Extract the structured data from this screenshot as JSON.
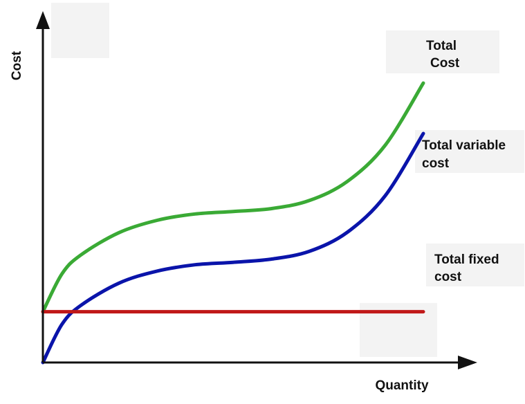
{
  "chart_data": {
    "type": "line",
    "title": "",
    "xlabel": "Quantity",
    "ylabel": "Cost",
    "grid": false,
    "axis_ticks": false,
    "series": [
      {
        "name": "Total Cost",
        "label_lines": [
          "Total",
          "Cost"
        ],
        "color": "#3aaa35",
        "x": [
          0,
          5,
          10,
          20,
          30,
          40,
          50,
          60,
          70,
          80,
          90,
          100
        ],
        "y": [
          14.4,
          25.1,
          30.5,
          36.8,
          40.3,
          42.1,
          42.8,
          43.6,
          45.9,
          51.3,
          61.6,
          79.2
        ]
      },
      {
        "name": "Total variable cost",
        "label_lines": [
          "Total variable",
          "cost"
        ],
        "color": "#0a14aa",
        "x": [
          0,
          5,
          10,
          20,
          30,
          40,
          50,
          60,
          70,
          80,
          90,
          100
        ],
        "y": [
          0,
          10.8,
          16.2,
          22.5,
          25.9,
          27.7,
          28.4,
          29.3,
          31.5,
          36.9,
          47.3,
          64.9
        ]
      },
      {
        "name": "Total fixed cost",
        "label_lines": [
          "Total fixed",
          "cost"
        ],
        "color": "#c01818",
        "x": [
          0,
          100
        ],
        "y": [
          14.4,
          14.4
        ]
      }
    ],
    "xlim": [
      0,
      100
    ],
    "ylim": [
      0,
      100
    ]
  }
}
